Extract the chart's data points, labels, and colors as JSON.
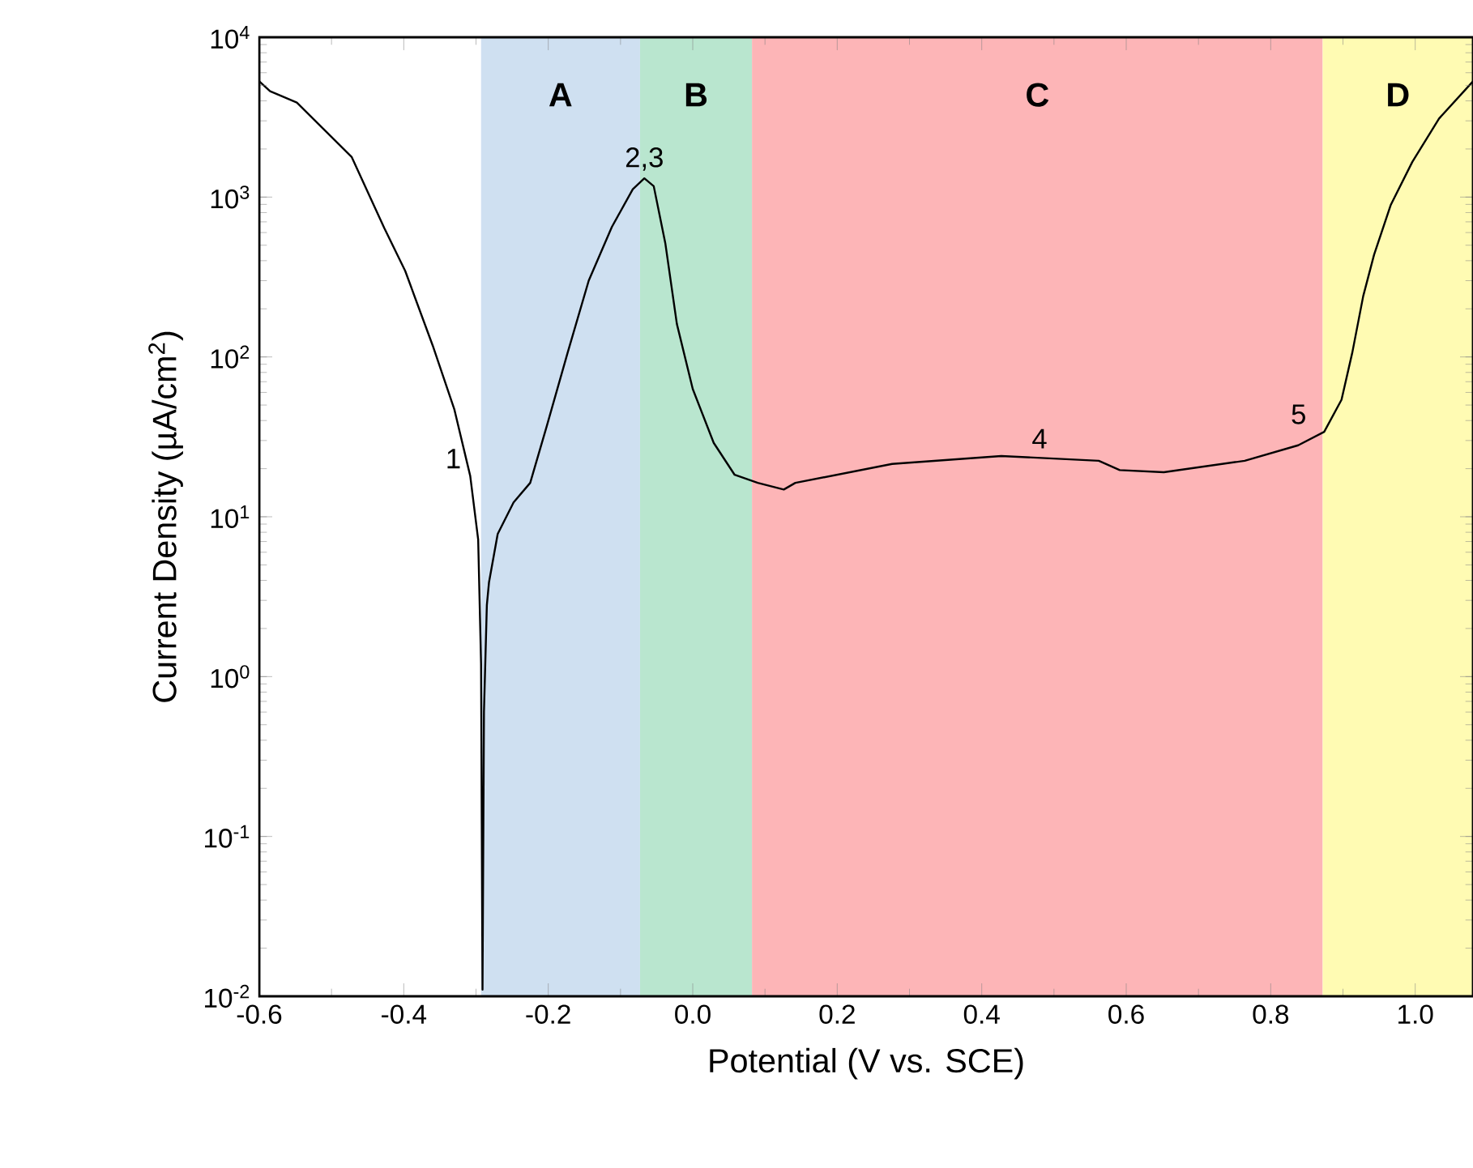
{
  "chart_data": {
    "type": "line",
    "xlabel": "Potential (V vs. SCE)",
    "ylabel": "Current Density (µA/cm$^{2}$)",
    "log": "y",
    "line_style": "solid",
    "color": "#000000",
    "x": [
      -0.6,
      -0.585,
      -0.575,
      -0.548,
      -0.472,
      -0.427,
      -0.398,
      -0.36,
      -0.33,
      -0.308,
      -0.297,
      -0.293,
      -0.291,
      -0.289,
      -0.285,
      -0.282,
      -0.27,
      -0.248,
      -0.225,
      -0.202,
      -0.173,
      -0.144,
      -0.112,
      -0.083,
      -0.067,
      -0.054,
      -0.038,
      -0.022,
      0.0,
      0.029,
      0.058,
      0.09,
      0.126,
      0.142,
      0.276,
      0.427,
      0.562,
      0.591,
      0.652,
      0.764,
      0.838,
      0.874,
      0.898,
      0.913,
      0.928,
      0.943,
      0.966,
      0.996,
      1.033,
      1.08
    ],
    "values": [
      5300,
      4600,
      4400,
      3900,
      1780,
      640,
      345,
      118,
      47,
      18,
      7.2,
      1.2,
      0.011,
      0.6,
      2.8,
      3.9,
      7.8,
      12.3,
      16.3,
      37,
      107,
      300,
      650,
      1120,
      1310,
      1170,
      515,
      161,
      63,
      29,
      18.3,
      16.3,
      14.8,
      16.3,
      21.4,
      24,
      22.4,
      19.6,
      19,
      22.4,
      28,
      34,
      54,
      107,
      240,
      435,
      890,
      1660,
      3100,
      5300
    ],
    "xlim": [
      -0.6,
      1.08
    ],
    "ylim": [
      0.01,
      10000
    ],
    "xticks": [
      -0.6,
      -0.4,
      -0.2,
      {
        "value": 0,
        "label": "0.0"
      },
      0.2,
      0.4,
      0.6,
      0.8,
      {
        "value": 1,
        "label": "1.0"
      }
    ],
    "yticks": [
      {
        "value": 0.01,
        "label": "10$^{-2}$"
      },
      {
        "value": 0.1,
        "label": "10$^{-1}$"
      },
      {
        "value": 1,
        "label": "10$^{0}$"
      },
      {
        "value": 10,
        "label": "10$^{1}$"
      },
      {
        "value": 100,
        "label": "10$^{2}$"
      },
      {
        "value": 1000,
        "label": "10$^{3}$"
      },
      {
        "value": 10000,
        "label": "10$^{4}$"
      }
    ],
    "bands": [
      {
        "axis": "x",
        "from": -0.293,
        "to": -0.073,
        "label": "A",
        "color": "#cfe0f1"
      },
      {
        "axis": "x",
        "from": -0.073,
        "to": 0.082,
        "label": "B",
        "color": "#b9e6cf"
      },
      {
        "axis": "x",
        "from": 0.082,
        "to": 0.872,
        "label": "C",
        "color": "#fdb5b7"
      },
      {
        "axis": "x",
        "from": 0.872,
        "to": 1.08,
        "label": "D",
        "color": "#fffbb3"
      }
    ],
    "annotations": [
      {
        "text": "1",
        "x": -0.31,
        "y": 18
      },
      {
        "text": "2,3",
        "x": -0.067,
        "y": 1310
      },
      {
        "text": "4",
        "x": 0.48,
        "y": 24
      },
      {
        "text": "5",
        "x": 0.86,
        "y": 34
      }
    ]
  }
}
